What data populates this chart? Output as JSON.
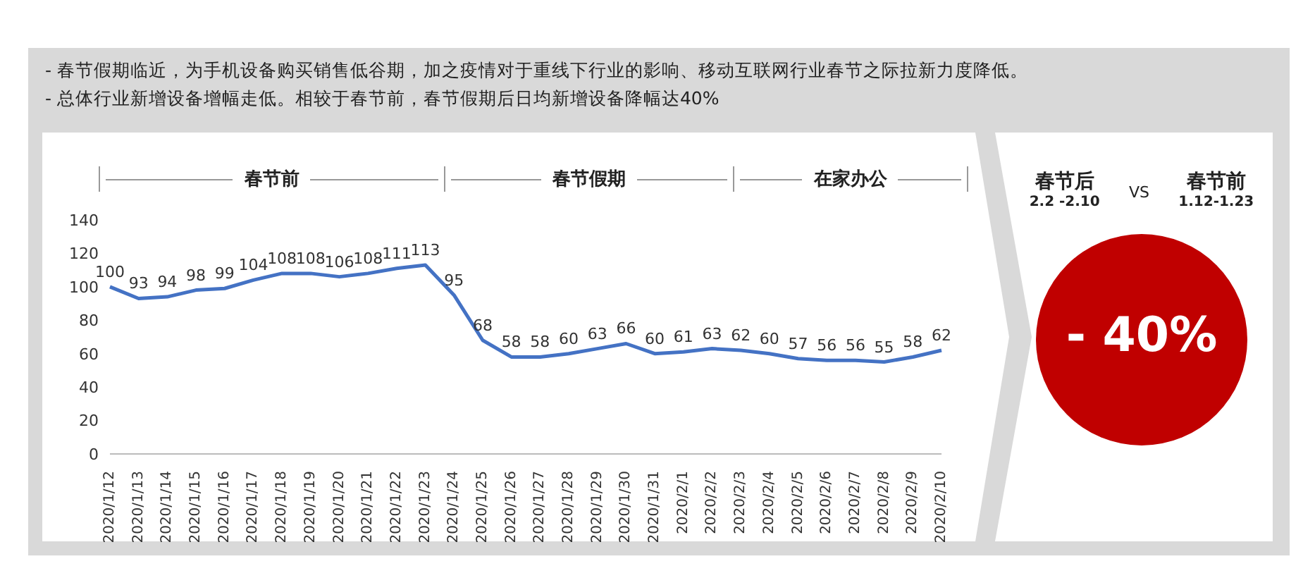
{
  "chart_data": {
    "type": "line",
    "annotations": [
      "-  春节假期临近，为手机设备购买销售低谷期，加之疫情对于重线下行业的影响、移动互联网行业春节之际拉新力度降低。",
      "-  总体行业新增设备增幅走低。相较于春节前，春节假期后日均新增设备降幅达40%",
      "春节前",
      "春节假期",
      "在家办公",
      "春节后",
      "2.2 -2.10",
      "VS",
      "春节前",
      "1.12-1.23",
      "- 40%"
    ],
    "categories": [
      "2020/1/12",
      "2020/1/13",
      "2020/1/14",
      "2020/1/15",
      "2020/1/16",
      "2020/1/17",
      "2020/1/18",
      "2020/1/19",
      "2020/1/20",
      "2020/1/21",
      "2020/1/22",
      "2020/1/23",
      "2020/1/24",
      "2020/1/25",
      "2020/1/26",
      "2020/1/27",
      "2020/1/28",
      "2020/1/29",
      "2020/1/30",
      "2020/1/31",
      "2020/2/1",
      "2020/2/2",
      "2020/2/3",
      "2020/2/4",
      "2020/2/5",
      "2020/2/6",
      "2020/2/7",
      "2020/2/8",
      "2020/2/9",
      "2020/2/10"
    ],
    "series": [
      {
        "color": "#4472c4",
        "values": [
          100,
          93,
          94,
          98,
          99,
          104,
          108,
          108,
          106,
          108,
          111,
          113,
          95,
          68,
          58,
          58,
          60,
          63,
          66,
          60,
          61,
          63,
          62,
          60,
          57,
          56,
          56,
          55,
          58,
          62
        ]
      }
    ],
    "ylim": [
      0,
      140
    ],
    "yticks": [
      0,
      20,
      40,
      60,
      80,
      100,
      120,
      140
    ],
    "data_labels": true,
    "grid": false,
    "marker": "none",
    "legend": false
  }
}
